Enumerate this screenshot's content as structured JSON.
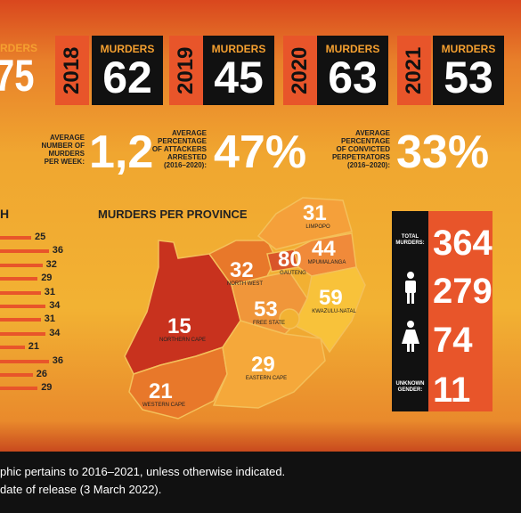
{
  "header": {
    "partial": {
      "label": "RDERS",
      "value": "75"
    },
    "years": [
      {
        "year": "2018",
        "label": "MURDERS",
        "value": "62"
      },
      {
        "year": "2019",
        "label": "MURDERS",
        "value": "45"
      },
      {
        "year": "2020",
        "label": "MURDERS",
        "value": "63"
      },
      {
        "year": "2021",
        "label": "MURDERS",
        "value": "53"
      }
    ]
  },
  "stats": [
    {
      "label": "AVERAGE\nNUMBER OF\nMURDERS\nPER WEEK:",
      "value": "1,2"
    },
    {
      "label": "AVERAGE\nPERCENTAGE\nOF ATTACKERS\nARRESTED\n(2016–2020):",
      "value": "47%"
    },
    {
      "label": "AVERAGE\nPERCENTAGE\nOF CONVICTED\nPERPETRATORS\n(2016–2020):",
      "value": "33%"
    }
  ],
  "monthly": {
    "heading": "H",
    "values": [
      25,
      36,
      32,
      29,
      31,
      34,
      31,
      34,
      21,
      36,
      26,
      29
    ]
  },
  "map": {
    "title": "MURDERS PER PROVINCE",
    "provinces": [
      {
        "value": 31,
        "name": "LIMPOPO"
      },
      {
        "value": 44,
        "name": "MPUMALANGA"
      },
      {
        "value": 80,
        "name": "GAUTENG"
      },
      {
        "value": 32,
        "name": "NORTH WEST"
      },
      {
        "value": 53,
        "name": "FREE STATE"
      },
      {
        "value": 59,
        "name": "KWAZULU-NATAL"
      },
      {
        "value": 15,
        "name": "NORTHERN CAPE"
      },
      {
        "value": 29,
        "name": "EASTERN CAPE"
      },
      {
        "value": 21,
        "name": "WESTERN CAPE"
      }
    ]
  },
  "totals": [
    {
      "label": "TOTAL\nMURDERS:",
      "value": 364
    },
    {
      "value": 279
    },
    {
      "value": 74
    },
    {
      "label": "UNKNOWN\nGENDER:",
      "value": 11
    }
  ],
  "footer": [
    "phic pertains to 2016–2021, unless otherwise indicated.",
    "date of release (3 March 2022)."
  ]
}
